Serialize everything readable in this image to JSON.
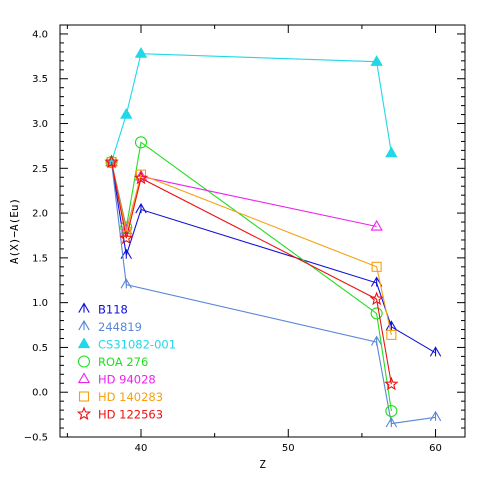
{
  "chart_data": {
    "type": "line",
    "xlabel": "Z",
    "ylabel": "A(X)−A(Eu)",
    "xlim": [
      34.5,
      62
    ],
    "ylim": [
      -0.5,
      4.1
    ],
    "xticks": [
      40,
      50,
      60
    ],
    "xtick_labels": [
      "40",
      "50",
      "60"
    ],
    "yticks": [
      -0.5,
      0.0,
      0.5,
      1.0,
      1.5,
      2.0,
      2.5,
      3.0,
      3.5,
      4.0
    ],
    "ytick_labels": [
      "−0.5",
      "0.0",
      "0.5",
      "1.0",
      "1.5",
      "2.0",
      "2.5",
      "3.0",
      "3.5",
      "4.0"
    ],
    "legend_position": "bottom-left",
    "series": [
      {
        "name": "B118",
        "color": "#1010d8",
        "marker": "tri-skel",
        "x": [
          38,
          39,
          40,
          56,
          57,
          60
        ],
        "y": [
          2.57,
          1.53,
          2.04,
          1.22,
          0.73,
          0.44
        ]
      },
      {
        "name": "244819",
        "color": "#5a87d8",
        "marker": "tri-skel",
        "x": [
          38,
          39,
          56,
          57,
          60
        ],
        "y": [
          2.57,
          1.2,
          0.56,
          -0.35,
          -0.28
        ]
      },
      {
        "name": "CS31082-001",
        "color": "#20d8e8",
        "marker": "tri-filled",
        "x": [
          38,
          39,
          40,
          56,
          57
        ],
        "y": [
          2.57,
          3.1,
          3.78,
          3.69,
          2.67
        ]
      },
      {
        "name": "ROA 276",
        "color": "#22dd22",
        "marker": "circle",
        "x": [
          38,
          39,
          40,
          56,
          57
        ],
        "y": [
          2.57,
          1.84,
          2.79,
          0.88,
          -0.21
        ]
      },
      {
        "name": "HD 94028",
        "color": "#ee22ee",
        "marker": "tri-open",
        "x": [
          38,
          39,
          40,
          56
        ],
        "y": [
          2.57,
          1.81,
          2.41,
          1.85
        ]
      },
      {
        "name": "HD 140283",
        "color": "#f5a010",
        "marker": "square",
        "x": [
          38,
          39,
          40,
          56,
          57
        ],
        "y": [
          2.57,
          1.79,
          2.43,
          1.4,
          0.64
        ]
      },
      {
        "name": "HD 122563",
        "color": "#ee1111",
        "marker": "star",
        "x": [
          38,
          39,
          40,
          56,
          57
        ],
        "y": [
          2.57,
          1.72,
          2.39,
          1.04,
          0.09
        ]
      }
    ]
  }
}
